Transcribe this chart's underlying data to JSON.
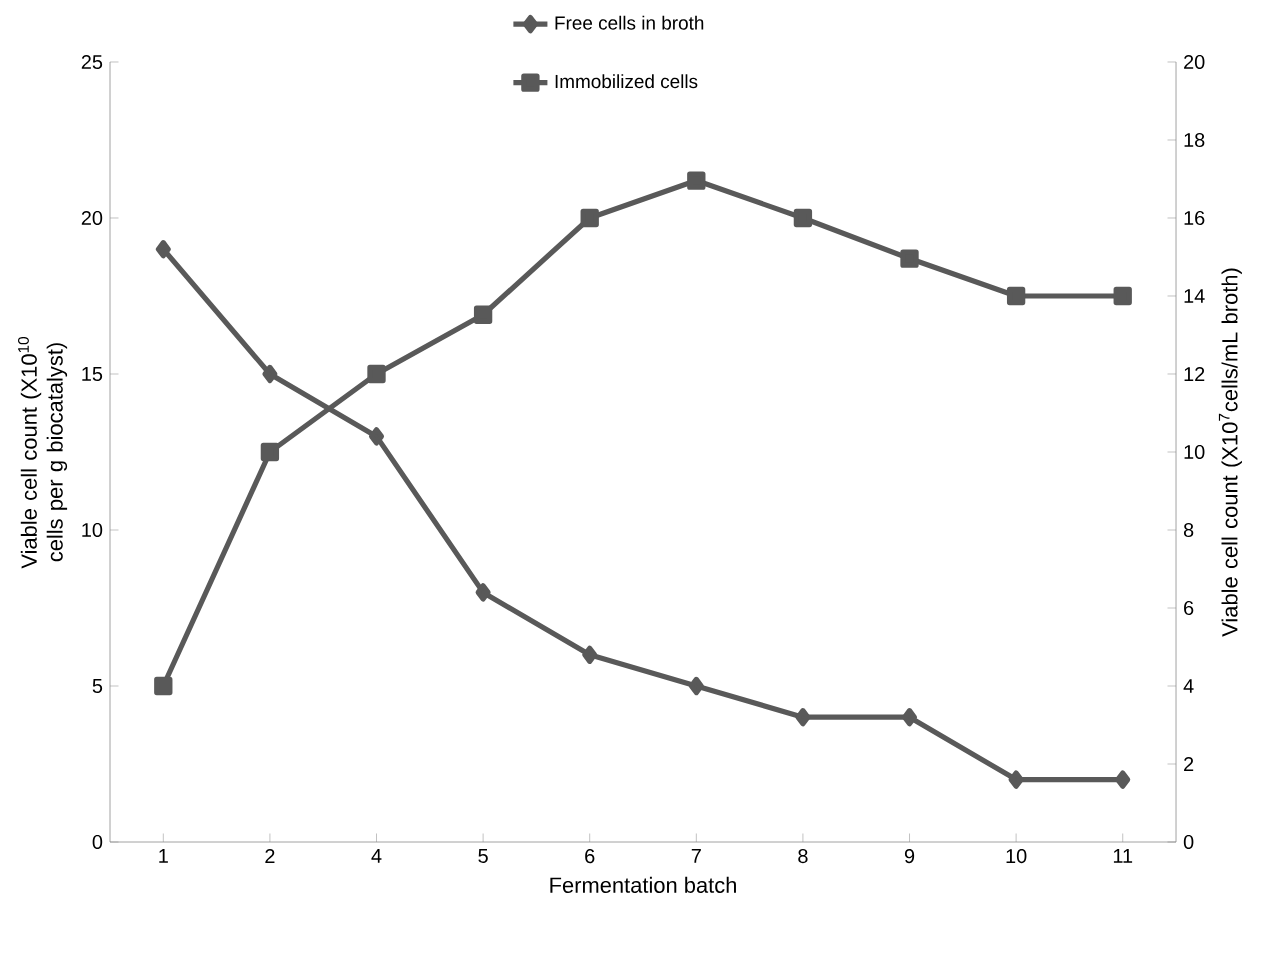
{
  "chart_data": {
    "type": "line",
    "xlabel": "Fermentation batch",
    "ylabel": "Viable cell count (X10$^{10}$ cells per g biocatalyst)",
    "y2label": "Viable cell count (X10$^{7}$cells/mL broth)",
    "categories": [
      "1",
      "2",
      "4",
      "5",
      "6",
      "7",
      "8",
      "9",
      "10",
      "11"
    ],
    "series": [
      {
        "name": "Free cells in broth",
        "color": "#595959",
        "marker": "diamond",
        "axis": "y2",
        "values": [
          15.2,
          12,
          10.4,
          6.4,
          4.8,
          4,
          3.2,
          3.2,
          1.6,
          1.6
        ]
      },
      {
        "name": "Immobilized cells",
        "color": "#595959",
        "marker": "square",
        "values": [
          5,
          12.5,
          15,
          16.9,
          20,
          21.2,
          20,
          18.7,
          17.5,
          17.5
        ]
      }
    ],
    "ylim": [
      0,
      25
    ],
    "yticks": [
      0,
      5,
      10,
      15,
      20,
      25
    ],
    "y2lim": [
      0,
      20
    ],
    "y2ticks": [
      0,
      2,
      4,
      6,
      8,
      10,
      12,
      14,
      16,
      18,
      20
    ],
    "legend": "top",
    "grid": false
  }
}
